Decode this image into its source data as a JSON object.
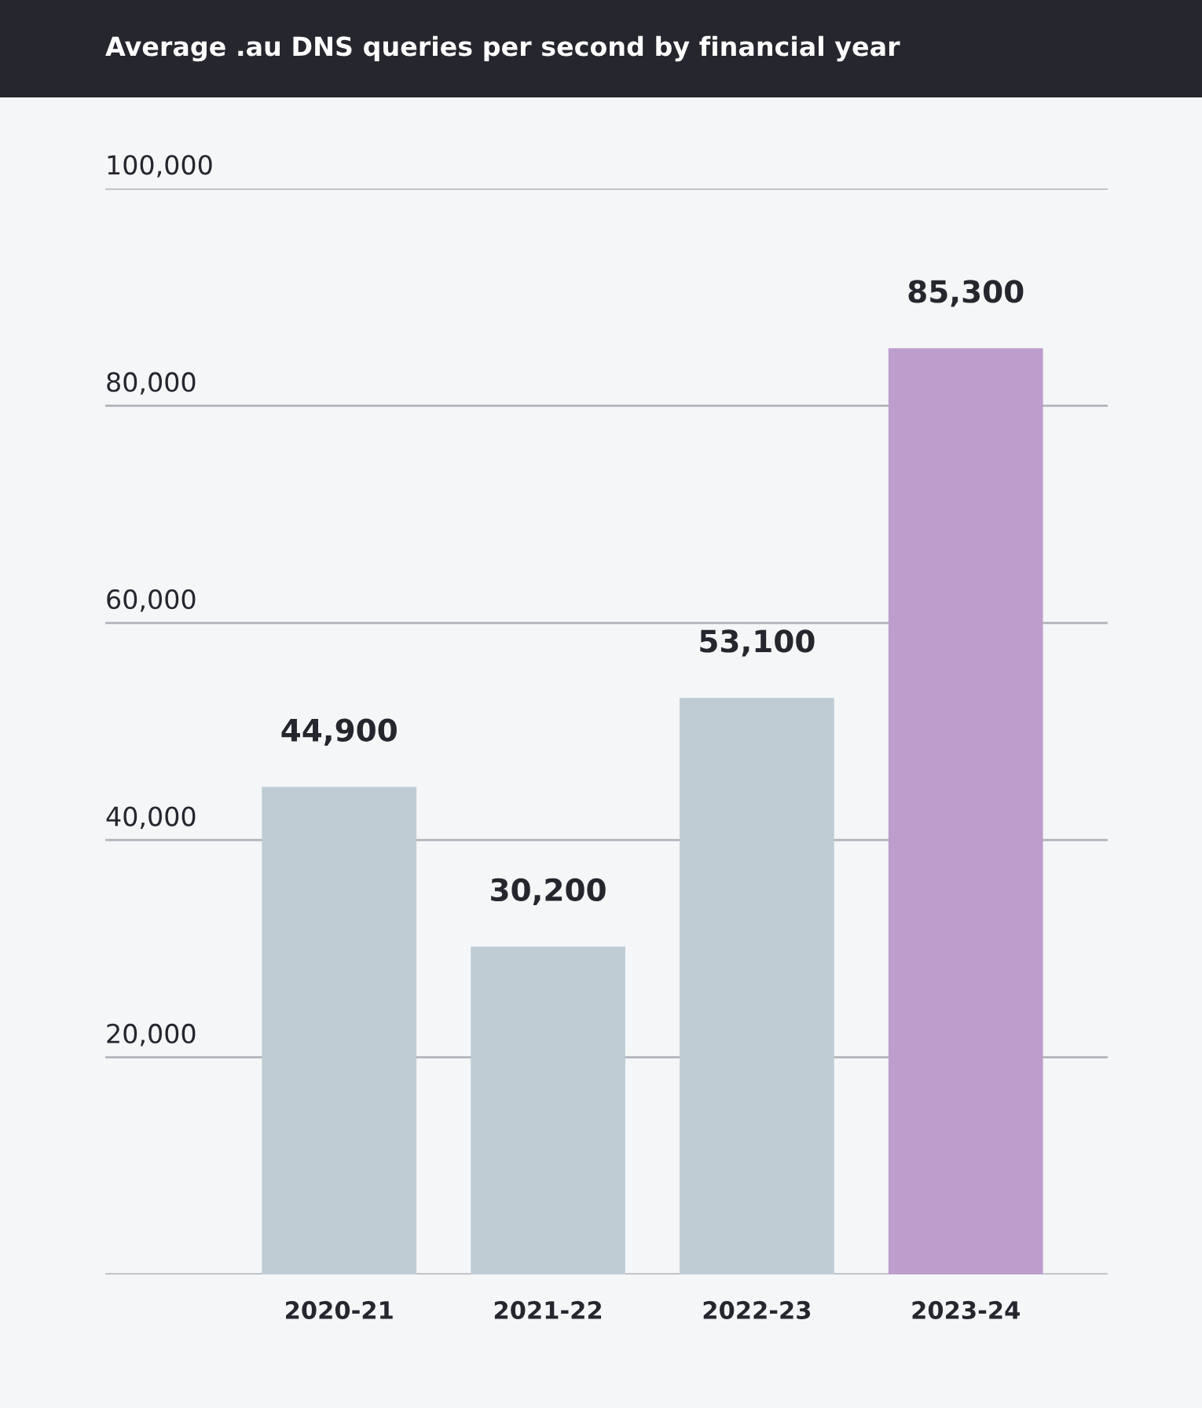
{
  "chart_data": {
    "type": "bar",
    "title": "Average .au DNS queries per second by financial year",
    "categories": [
      "2020-21",
      "2021-22",
      "2022-23",
      "2023-24"
    ],
    "values": [
      44900,
      30200,
      53100,
      85300
    ],
    "colors": [
      "#bfccd4",
      "#bfccd4",
      "#bfccd4",
      "#bd9dcb"
    ],
    "value_labels": [
      "44,900",
      "30,200",
      "53,100",
      "85,300"
    ],
    "ylim": [
      0,
      100000
    ],
    "yticks": [
      {
        "value": 0,
        "label": null
      },
      {
        "value": 20000,
        "label": "20,000"
      },
      {
        "value": 40000,
        "label": "40,000"
      },
      {
        "value": 60000,
        "label": "60,000"
      },
      {
        "value": 80000,
        "label": "80,000"
      },
      {
        "value": 100000,
        "label": "100,000"
      }
    ],
    "grid": "y",
    "legend": false
  }
}
